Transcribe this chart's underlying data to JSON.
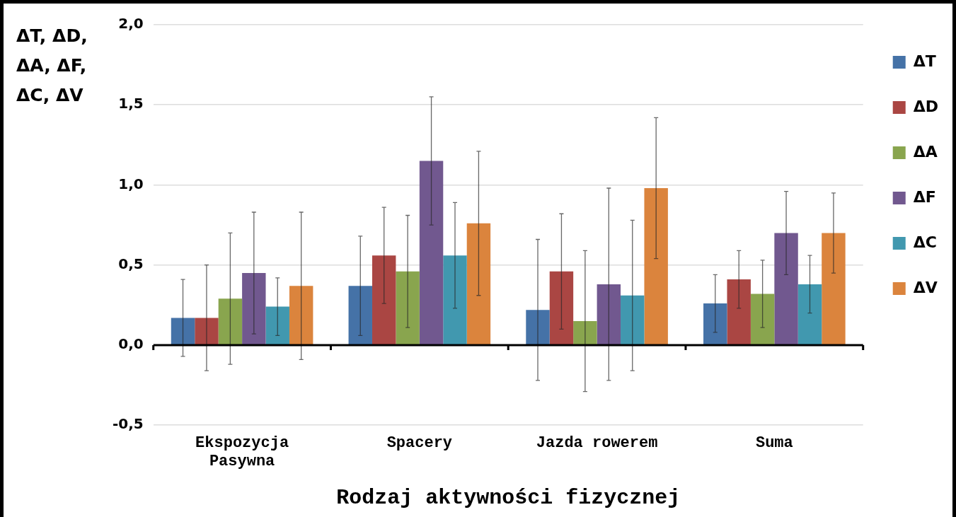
{
  "chart_data": {
    "type": "bar",
    "xlabel": "Rodzaj aktywności fizycznej",
    "ylabel": "ΔT, ΔD, ΔA, ΔF, ΔC, ΔV",
    "categories": [
      "Ekspozycja Pasywna",
      "Spacery",
      "Jazda rowerem",
      "Suma"
    ],
    "series": [
      {
        "name": "ΔT",
        "color": "#4572a7",
        "values": [
          0.17,
          0.37,
          0.22,
          0.26
        ],
        "errors": [
          0.24,
          0.31,
          0.44,
          0.18
        ]
      },
      {
        "name": "ΔD",
        "color": "#aa4643",
        "values": [
          0.17,
          0.56,
          0.46,
          0.41
        ],
        "errors": [
          0.33,
          0.3,
          0.36,
          0.18
        ]
      },
      {
        "name": "ΔA",
        "color": "#89a54e",
        "values": [
          0.29,
          0.46,
          0.15,
          0.32
        ],
        "errors": [
          0.41,
          0.35,
          0.44,
          0.21
        ]
      },
      {
        "name": "ΔF",
        "color": "#71588f",
        "values": [
          0.45,
          1.15,
          0.38,
          0.7
        ],
        "errors": [
          0.38,
          0.4,
          0.6,
          0.26
        ]
      },
      {
        "name": "ΔC",
        "color": "#4198af",
        "values": [
          0.24,
          0.56,
          0.31,
          0.38
        ],
        "errors": [
          0.18,
          0.33,
          0.47,
          0.18
        ]
      },
      {
        "name": "ΔV",
        "color": "#db843d",
        "values": [
          0.37,
          0.76,
          0.98,
          0.7
        ],
        "errors": [
          0.46,
          0.45,
          0.44,
          0.25
        ]
      }
    ],
    "ylim": [
      -0.5,
      2.0
    ],
    "yticks": [
      {
        "value": -0.5,
        "label": "-0,5"
      },
      {
        "value": 0,
        "label": "0,0"
      },
      {
        "value": 0.5,
        "label": "0,5"
      },
      {
        "value": 1.0,
        "label": "1,0"
      },
      {
        "value": 1.5,
        "label": "1,5"
      },
      {
        "value": 2.0,
        "label": "2,0"
      }
    ],
    "grid": "y",
    "legend": "right"
  }
}
